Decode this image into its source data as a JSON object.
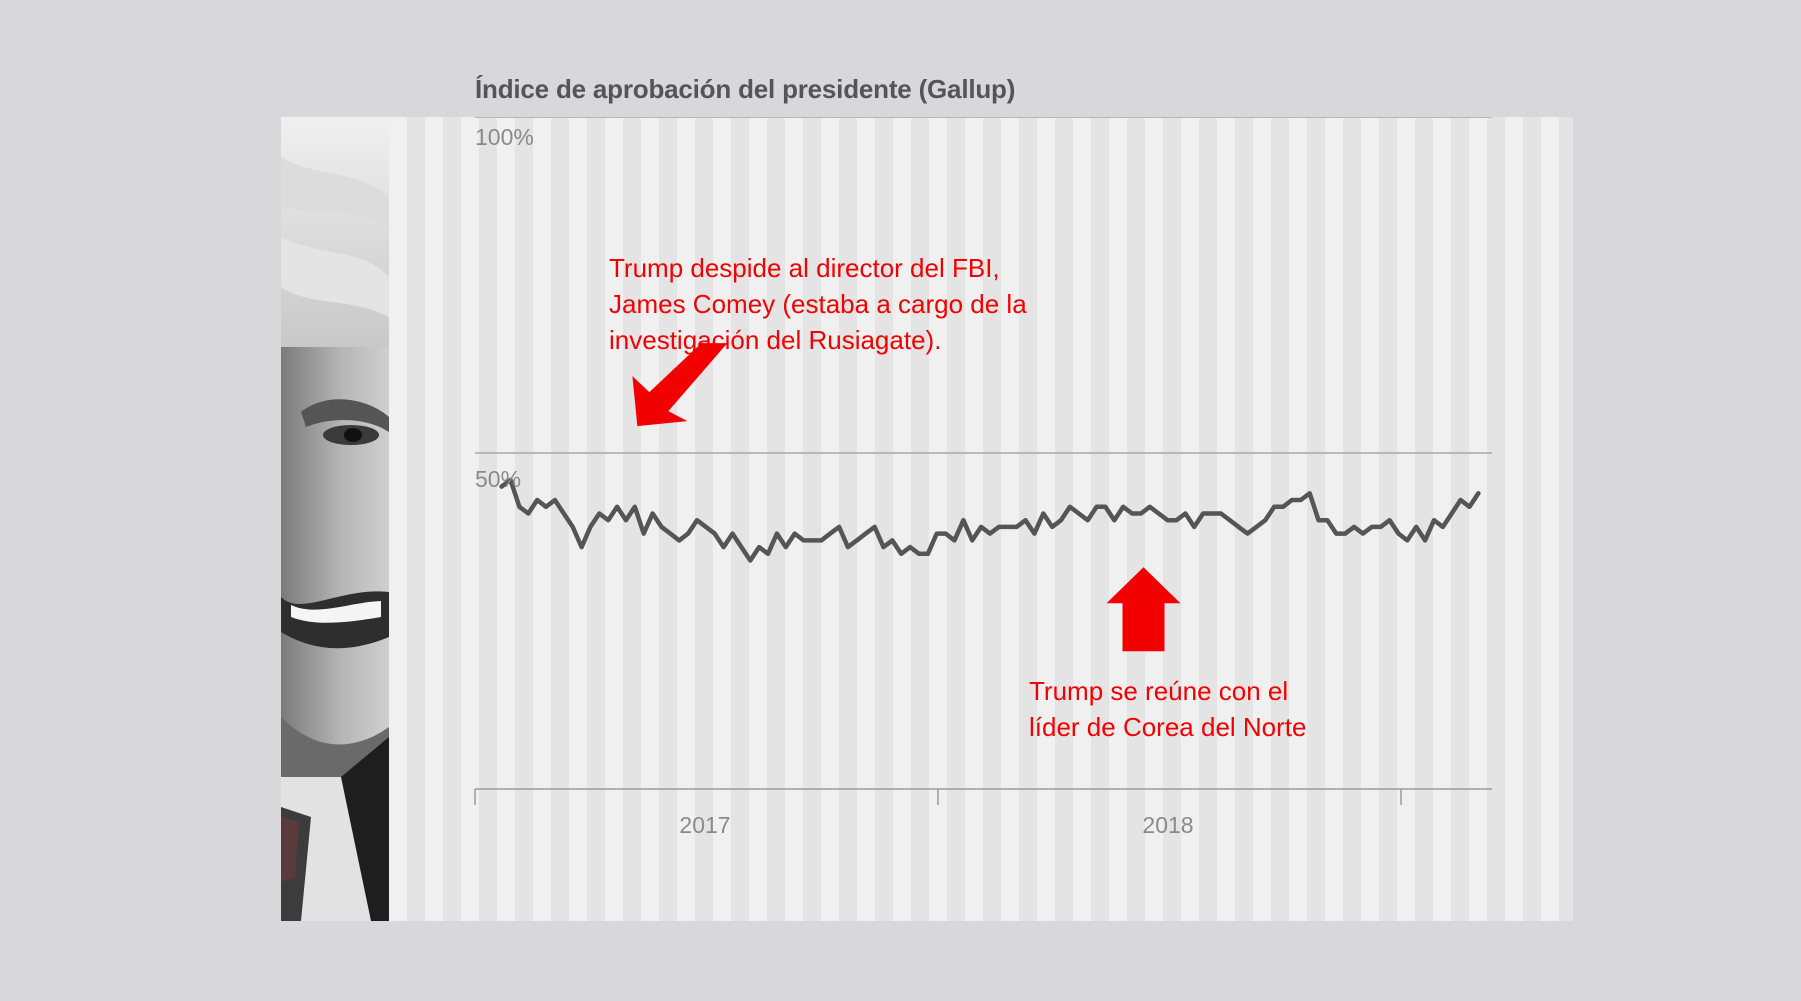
{
  "chart_data": {
    "type": "line",
    "title": "Índice de aprobación del presidente (Gallup)",
    "ylim": [
      0,
      100
    ],
    "yticks": [
      {
        "value": 100,
        "label": "100%"
      },
      {
        "value": 50,
        "label": "50%"
      }
    ],
    "x_axis": {
      "start": "2017-01-20",
      "end": "2019-03-31",
      "tick_dates": [
        "2017-01-01",
        "2018-01-01",
        "2019-01-01"
      ],
      "labels": [
        {
          "date": "2017-07-02",
          "label": "2017"
        },
        {
          "date": "2018-07-02",
          "label": "2018"
        }
      ]
    },
    "grid": true,
    "series": [
      {
        "color": "#555555",
        "points": [
          [
            "2017-01-22",
            45
          ],
          [
            "2017-01-29",
            46
          ],
          [
            "2017-02-05",
            42
          ],
          [
            "2017-02-12",
            41
          ],
          [
            "2017-02-19",
            43
          ],
          [
            "2017-02-26",
            42
          ],
          [
            "2017-03-05",
            43
          ],
          [
            "2017-03-12",
            41
          ],
          [
            "2017-03-19",
            39
          ],
          [
            "2017-03-26",
            36
          ],
          [
            "2017-04-02",
            39
          ],
          [
            "2017-04-09",
            41
          ],
          [
            "2017-04-16",
            40
          ],
          [
            "2017-04-23",
            42
          ],
          [
            "2017-04-30",
            40
          ],
          [
            "2017-05-07",
            42
          ],
          [
            "2017-05-14",
            38
          ],
          [
            "2017-05-21",
            41
          ],
          [
            "2017-05-28",
            39
          ],
          [
            "2017-06-04",
            38
          ],
          [
            "2017-06-11",
            37
          ],
          [
            "2017-06-18",
            38
          ],
          [
            "2017-06-25",
            40
          ],
          [
            "2017-07-02",
            39
          ],
          [
            "2017-07-09",
            38
          ],
          [
            "2017-07-16",
            36
          ],
          [
            "2017-07-23",
            38
          ],
          [
            "2017-07-30",
            36
          ],
          [
            "2017-08-06",
            34
          ],
          [
            "2017-08-13",
            36
          ],
          [
            "2017-08-20",
            35
          ],
          [
            "2017-08-27",
            38
          ],
          [
            "2017-09-03",
            36
          ],
          [
            "2017-09-10",
            38
          ],
          [
            "2017-09-17",
            37
          ],
          [
            "2017-09-24",
            37
          ],
          [
            "2017-10-01",
            37
          ],
          [
            "2017-10-08",
            38
          ],
          [
            "2017-10-15",
            39
          ],
          [
            "2017-10-22",
            36
          ],
          [
            "2017-10-29",
            37
          ],
          [
            "2017-11-05",
            38
          ],
          [
            "2017-11-12",
            39
          ],
          [
            "2017-11-19",
            36
          ],
          [
            "2017-11-26",
            37
          ],
          [
            "2017-12-03",
            35
          ],
          [
            "2017-12-10",
            36
          ],
          [
            "2017-12-17",
            35
          ],
          [
            "2017-12-24",
            35
          ],
          [
            "2017-12-31",
            38
          ],
          [
            "2018-01-07",
            38
          ],
          [
            "2018-01-14",
            37
          ],
          [
            "2018-01-21",
            40
          ],
          [
            "2018-01-28",
            37
          ],
          [
            "2018-02-04",
            39
          ],
          [
            "2018-02-11",
            38
          ],
          [
            "2018-02-18",
            39
          ],
          [
            "2018-02-25",
            39
          ],
          [
            "2018-03-04",
            39
          ],
          [
            "2018-03-11",
            40
          ],
          [
            "2018-03-18",
            38
          ],
          [
            "2018-03-25",
            41
          ],
          [
            "2018-04-01",
            39
          ],
          [
            "2018-04-08",
            40
          ],
          [
            "2018-04-15",
            42
          ],
          [
            "2018-04-22",
            41
          ],
          [
            "2018-04-29",
            40
          ],
          [
            "2018-05-06",
            42
          ],
          [
            "2018-05-13",
            42
          ],
          [
            "2018-05-20",
            40
          ],
          [
            "2018-05-27",
            42
          ],
          [
            "2018-06-03",
            41
          ],
          [
            "2018-06-10",
            41
          ],
          [
            "2018-06-17",
            42
          ],
          [
            "2018-06-24",
            41
          ],
          [
            "2018-07-01",
            40
          ],
          [
            "2018-07-08",
            40
          ],
          [
            "2018-07-15",
            41
          ],
          [
            "2018-07-22",
            39
          ],
          [
            "2018-07-29",
            41
          ],
          [
            "2018-08-05",
            41
          ],
          [
            "2018-08-12",
            41
          ],
          [
            "2018-08-19",
            40
          ],
          [
            "2018-08-26",
            39
          ],
          [
            "2018-09-02",
            38
          ],
          [
            "2018-09-09",
            39
          ],
          [
            "2018-09-16",
            40
          ],
          [
            "2018-09-23",
            42
          ],
          [
            "2018-09-30",
            42
          ],
          [
            "2018-10-07",
            43
          ],
          [
            "2018-10-14",
            43
          ],
          [
            "2018-10-21",
            44
          ],
          [
            "2018-10-28",
            40
          ],
          [
            "2018-11-04",
            40
          ],
          [
            "2018-11-11",
            38
          ],
          [
            "2018-11-18",
            38
          ],
          [
            "2018-11-25",
            39
          ],
          [
            "2018-12-02",
            38
          ],
          [
            "2018-12-09",
            39
          ],
          [
            "2018-12-16",
            39
          ],
          [
            "2018-12-23",
            40
          ],
          [
            "2018-12-30",
            38
          ],
          [
            "2019-01-06",
            37
          ],
          [
            "2019-01-13",
            39
          ],
          [
            "2019-01-20",
            37
          ],
          [
            "2019-01-27",
            40
          ],
          [
            "2019-02-03",
            39
          ],
          [
            "2019-02-10",
            41
          ],
          [
            "2019-02-17",
            43
          ],
          [
            "2019-02-24",
            42
          ],
          [
            "2019-03-03",
            44
          ]
        ]
      }
    ],
    "annotations": [
      {
        "date": "2017-05-09",
        "lines": [
          "Trump despide al director del FBI,",
          "James Comey (estaba a cargo de la",
          "investigación del Rusiagate)."
        ],
        "color": "#f20000"
      },
      {
        "date": "2018-06-12",
        "lines": [
          "Trump se reúne con el",
          "líder de Corea del Norte"
        ],
        "color": "#f20000"
      }
    ]
  }
}
